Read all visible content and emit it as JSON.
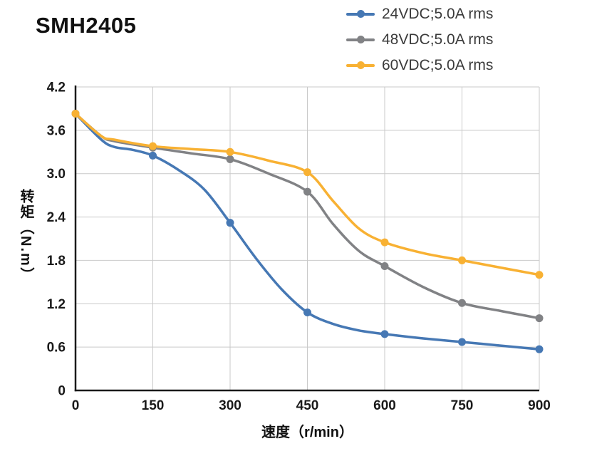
{
  "chart_data": {
    "type": "line",
    "title": "SMH2405",
    "xlabel": "速度（r/min）",
    "ylabel": "转矩（N.m）",
    "xlim": [
      0,
      900
    ],
    "ylim": [
      0,
      4.2
    ],
    "x_ticks": [
      0,
      150,
      300,
      450,
      600,
      750,
      900
    ],
    "x_tick_labels": [
      "0",
      "150",
      "300",
      "450",
      "600",
      "750",
      "900"
    ],
    "y_ticks": [
      0,
      0.6,
      1.2,
      1.8,
      2.4,
      3.0,
      3.6,
      4.2
    ],
    "y_tick_labels": [
      "0",
      "0.6",
      "1.2",
      "1.8",
      "2.4",
      "3.0",
      "3.6",
      "4.2"
    ],
    "grid": true,
    "legend_position": "top-right",
    "grid_color": "#c9c9c9",
    "axis_color": "#1a1a1a",
    "series": [
      {
        "name": "24VDC;5.0A rms",
        "color": "#4678b4",
        "x": [
          0,
          50,
          75,
          110,
          150,
          200,
          250,
          300,
          350,
          400,
          450,
          500,
          550,
          600,
          675,
          750,
          825,
          900
        ],
        "y": [
          3.83,
          3.47,
          3.37,
          3.33,
          3.25,
          3.05,
          2.78,
          2.32,
          1.83,
          1.4,
          1.08,
          0.92,
          0.83,
          0.78,
          0.72,
          0.67,
          0.62,
          0.57
        ],
        "markers": [
          0,
          150,
          300,
          450,
          600,
          750,
          900
        ]
      },
      {
        "name": "48VDC;5.0A rms",
        "color": "#818285",
        "x": [
          0,
          50,
          75,
          150,
          225,
          300,
          375,
          450,
          500,
          550,
          600,
          675,
          750,
          825,
          900
        ],
        "y": [
          3.83,
          3.52,
          3.45,
          3.36,
          3.28,
          3.2,
          3.0,
          2.75,
          2.3,
          1.93,
          1.72,
          1.43,
          1.21,
          1.1,
          1.0
        ],
        "markers": [
          0,
          150,
          300,
          450,
          600,
          750,
          900
        ]
      },
      {
        "name": "60VDC;5.0A rms",
        "color": "#f8b133",
        "x": [
          0,
          50,
          75,
          150,
          225,
          300,
          375,
          450,
          500,
          550,
          600,
          675,
          750,
          825,
          900
        ],
        "y": [
          3.83,
          3.52,
          3.47,
          3.38,
          3.34,
          3.3,
          3.18,
          3.02,
          2.62,
          2.24,
          2.05,
          1.9,
          1.8,
          1.7,
          1.6
        ],
        "markers": [
          0,
          150,
          300,
          450,
          600,
          750,
          900
        ]
      }
    ]
  }
}
